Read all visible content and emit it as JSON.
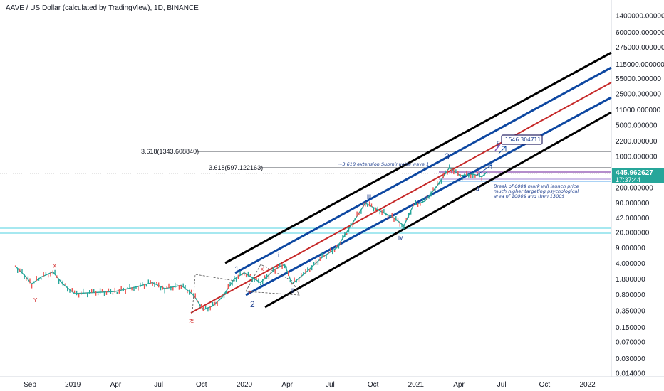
{
  "chart_data": {
    "type": "candlestick",
    "title": "AAVE / US Dollar (calculated by TradingView), 1D, BINANCE",
    "y_scale": "log",
    "ylim": [
      0.014,
      3000000
    ],
    "y_ticks": [
      "1400000.000000",
      "600000.000000",
      "275000.000000",
      "115000.000000",
      "55000.000000",
      "25000.000000",
      "11000.000000",
      "5000.000000",
      "2200.000000",
      "1000.000000",
      "445.962627",
      "200.000000",
      "90.000000",
      "42.000000",
      "20.000000",
      "9.000000",
      "4.000000",
      "1.800000",
      "0.800000",
      "0.350000",
      "0.150000",
      "0.070000",
      "0.030000",
      "0.014000"
    ],
    "x_ticks": [
      "Sep",
      "2019",
      "Apr",
      "Jul",
      "Oct",
      "2020",
      "Apr",
      "Jul",
      "Oct",
      "2021",
      "Apr",
      "Jul",
      "Oct",
      "2022"
    ],
    "price_label": {
      "value": "445.962627",
      "timer": "17:37:44",
      "color": "#26a69a"
    },
    "levels": [
      {
        "label": "3.618(1343.608840)",
        "value": 1343.60884
      },
      {
        "label": "3.618(597.122163)",
        "value": 597.122163
      }
    ],
    "annotations": {
      "target_box": "1546.304711",
      "ext_note": "~3.618 extension Subminuette wave 1",
      "break_note": [
        "Break of 600$ mark will launch price",
        "much higher targeting psychological",
        "area of 1000$ and then 1300$"
      ]
    },
    "wave_labels": [
      "1",
      "2",
      "3",
      "4",
      "5",
      "i",
      "ii",
      "iii",
      "iv",
      "x",
      "y",
      "z",
      "X",
      "Y",
      "Z"
    ],
    "price_path": [
      {
        "t": "2018-08-01",
        "v": 3.5
      },
      {
        "t": "2018-08-20",
        "v": 2.2
      },
      {
        "t": "2018-09-05",
        "v": 1.4
      },
      {
        "t": "2018-09-25",
        "v": 2.0
      },
      {
        "t": "2018-10-20",
        "v": 2.6
      },
      {
        "t": "2018-11-10",
        "v": 1.4
      },
      {
        "t": "2018-12-05",
        "v": 0.85
      },
      {
        "t": "2019-01-15",
        "v": 0.9
      },
      {
        "t": "2019-03-01",
        "v": 0.95
      },
      {
        "t": "2019-04-15",
        "v": 1.2
      },
      {
        "t": "2019-05-20",
        "v": 1.5
      },
      {
        "t": "2019-06-15",
        "v": 1.1
      },
      {
        "t": "2019-07-20",
        "v": 1.3
      },
      {
        "t": "2019-08-15",
        "v": 0.8
      },
      {
        "t": "2019-09-05",
        "v": 0.37
      },
      {
        "t": "2019-09-25",
        "v": 0.45
      },
      {
        "t": "2019-10-15",
        "v": 0.7
      },
      {
        "t": "2019-11-10",
        "v": 1.8
      },
      {
        "t": "2019-12-01",
        "v": 2.5
      },
      {
        "t": "2020-01-05",
        "v": 1.5
      },
      {
        "t": "2020-02-05",
        "v": 3.0
      },
      {
        "t": "2020-02-25",
        "v": 3.8
      },
      {
        "t": "2020-03-12",
        "v": 1.4
      },
      {
        "t": "2020-04-10",
        "v": 2.5
      },
      {
        "t": "2020-05-15",
        "v": 5.5
      },
      {
        "t": "2020-06-15",
        "v": 9.0
      },
      {
        "t": "2020-07-15",
        "v": 28.0
      },
      {
        "t": "2020-08-15",
        "v": 90.0
      },
      {
        "t": "2020-09-15",
        "v": 60.0
      },
      {
        "t": "2020-10-15",
        "v": 42.0
      },
      {
        "t": "2020-11-05",
        "v": 28.0
      },
      {
        "t": "2020-11-25",
        "v": 80.0
      },
      {
        "t": "2020-12-20",
        "v": 100.0
      },
      {
        "t": "2021-01-15",
        "v": 220.0
      },
      {
        "t": "2021-02-10",
        "v": 560.0
      },
      {
        "t": "2021-03-05",
        "v": 370.0
      },
      {
        "t": "2021-04-01",
        "v": 400.0
      },
      {
        "t": "2021-04-20",
        "v": 350.0
      },
      {
        "t": "2021-05-01",
        "v": 445.96
      }
    ]
  }
}
